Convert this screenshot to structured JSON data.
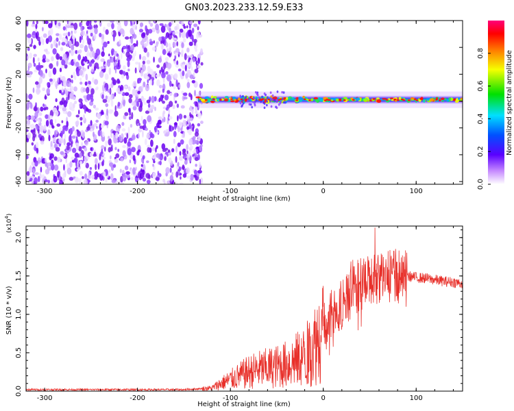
{
  "title": "GN03.2023.233.12.59.E33",
  "colors": {
    "snr_line": "#e8302a",
    "frame": "#000000",
    "spectrogram_noise": "#7a1fe8",
    "spectrogram_band_low": "#1a3cff",
    "spectrogram_band_mid": "#22e05a",
    "spectrogram_band_high": "#ff1010"
  },
  "chart_data": [
    {
      "type": "heatmap",
      "name": "spectrogram",
      "xlabel": "Height of straight line (km)",
      "ylabel": "Frequency (Hz)",
      "xlim": [
        -320,
        150
      ],
      "ylim": [
        -62,
        60
      ],
      "xticks": [
        -300,
        -200,
        -100,
        0,
        100
      ],
      "yticks": [
        60,
        40,
        20,
        0,
        -20,
        -40,
        -60
      ],
      "colorbar": {
        "label": "Normalized spectral amplitude",
        "range": [
          0.0,
          1.0
        ],
        "ticks": [
          "0.0",
          "0.2",
          "0.4",
          "0.6",
          "0.8"
        ]
      },
      "regions": [
        {
          "feature": "broadband noise",
          "x_range": [
            -320,
            -135
          ],
          "freq_range": [
            -62,
            60
          ],
          "amplitude": 0.15
        },
        {
          "feature": "narrow signal band",
          "x_range": [
            -135,
            150
          ],
          "center_freq": 1,
          "amplitude_peak": 1.0
        }
      ]
    },
    {
      "type": "line",
      "name": "snr",
      "xlabel": "Height of straight line (km)",
      "ylabel": "SNR (10 * v/v)",
      "y_multiplier": "(x10",
      "y_multiplier_exp": "4",
      "y_multiplier_close": ")",
      "xlim": [
        -320,
        150
      ],
      "ylim": [
        0,
        2.15
      ],
      "xticks": [
        -300,
        -200,
        -100,
        0,
        100
      ],
      "yticks": [
        "0.0",
        "0.5",
        "1.0",
        "1.5",
        "2.0"
      ],
      "series": [
        {
          "x": [
            -320,
            -250,
            -200,
            -150,
            -120,
            -110,
            -100,
            -90,
            -80,
            -70,
            -60,
            -50,
            -40,
            -30,
            -20,
            -10,
            0,
            10,
            20,
            30,
            40,
            50,
            60,
            70,
            80,
            90,
            100,
            110,
            120,
            130,
            140,
            150
          ],
          "y": [
            0.02,
            0.02,
            0.02,
            0.02,
            0.04,
            0.1,
            0.15,
            0.2,
            0.25,
            0.28,
            0.3,
            0.32,
            0.35,
            0.4,
            0.45,
            0.6,
            0.8,
            1.0,
            1.15,
            1.3,
            1.4,
            1.45,
            1.48,
            1.5,
            1.52,
            1.5,
            1.48,
            1.47,
            1.45,
            1.43,
            1.42,
            1.4
          ]
        }
      ]
    }
  ]
}
